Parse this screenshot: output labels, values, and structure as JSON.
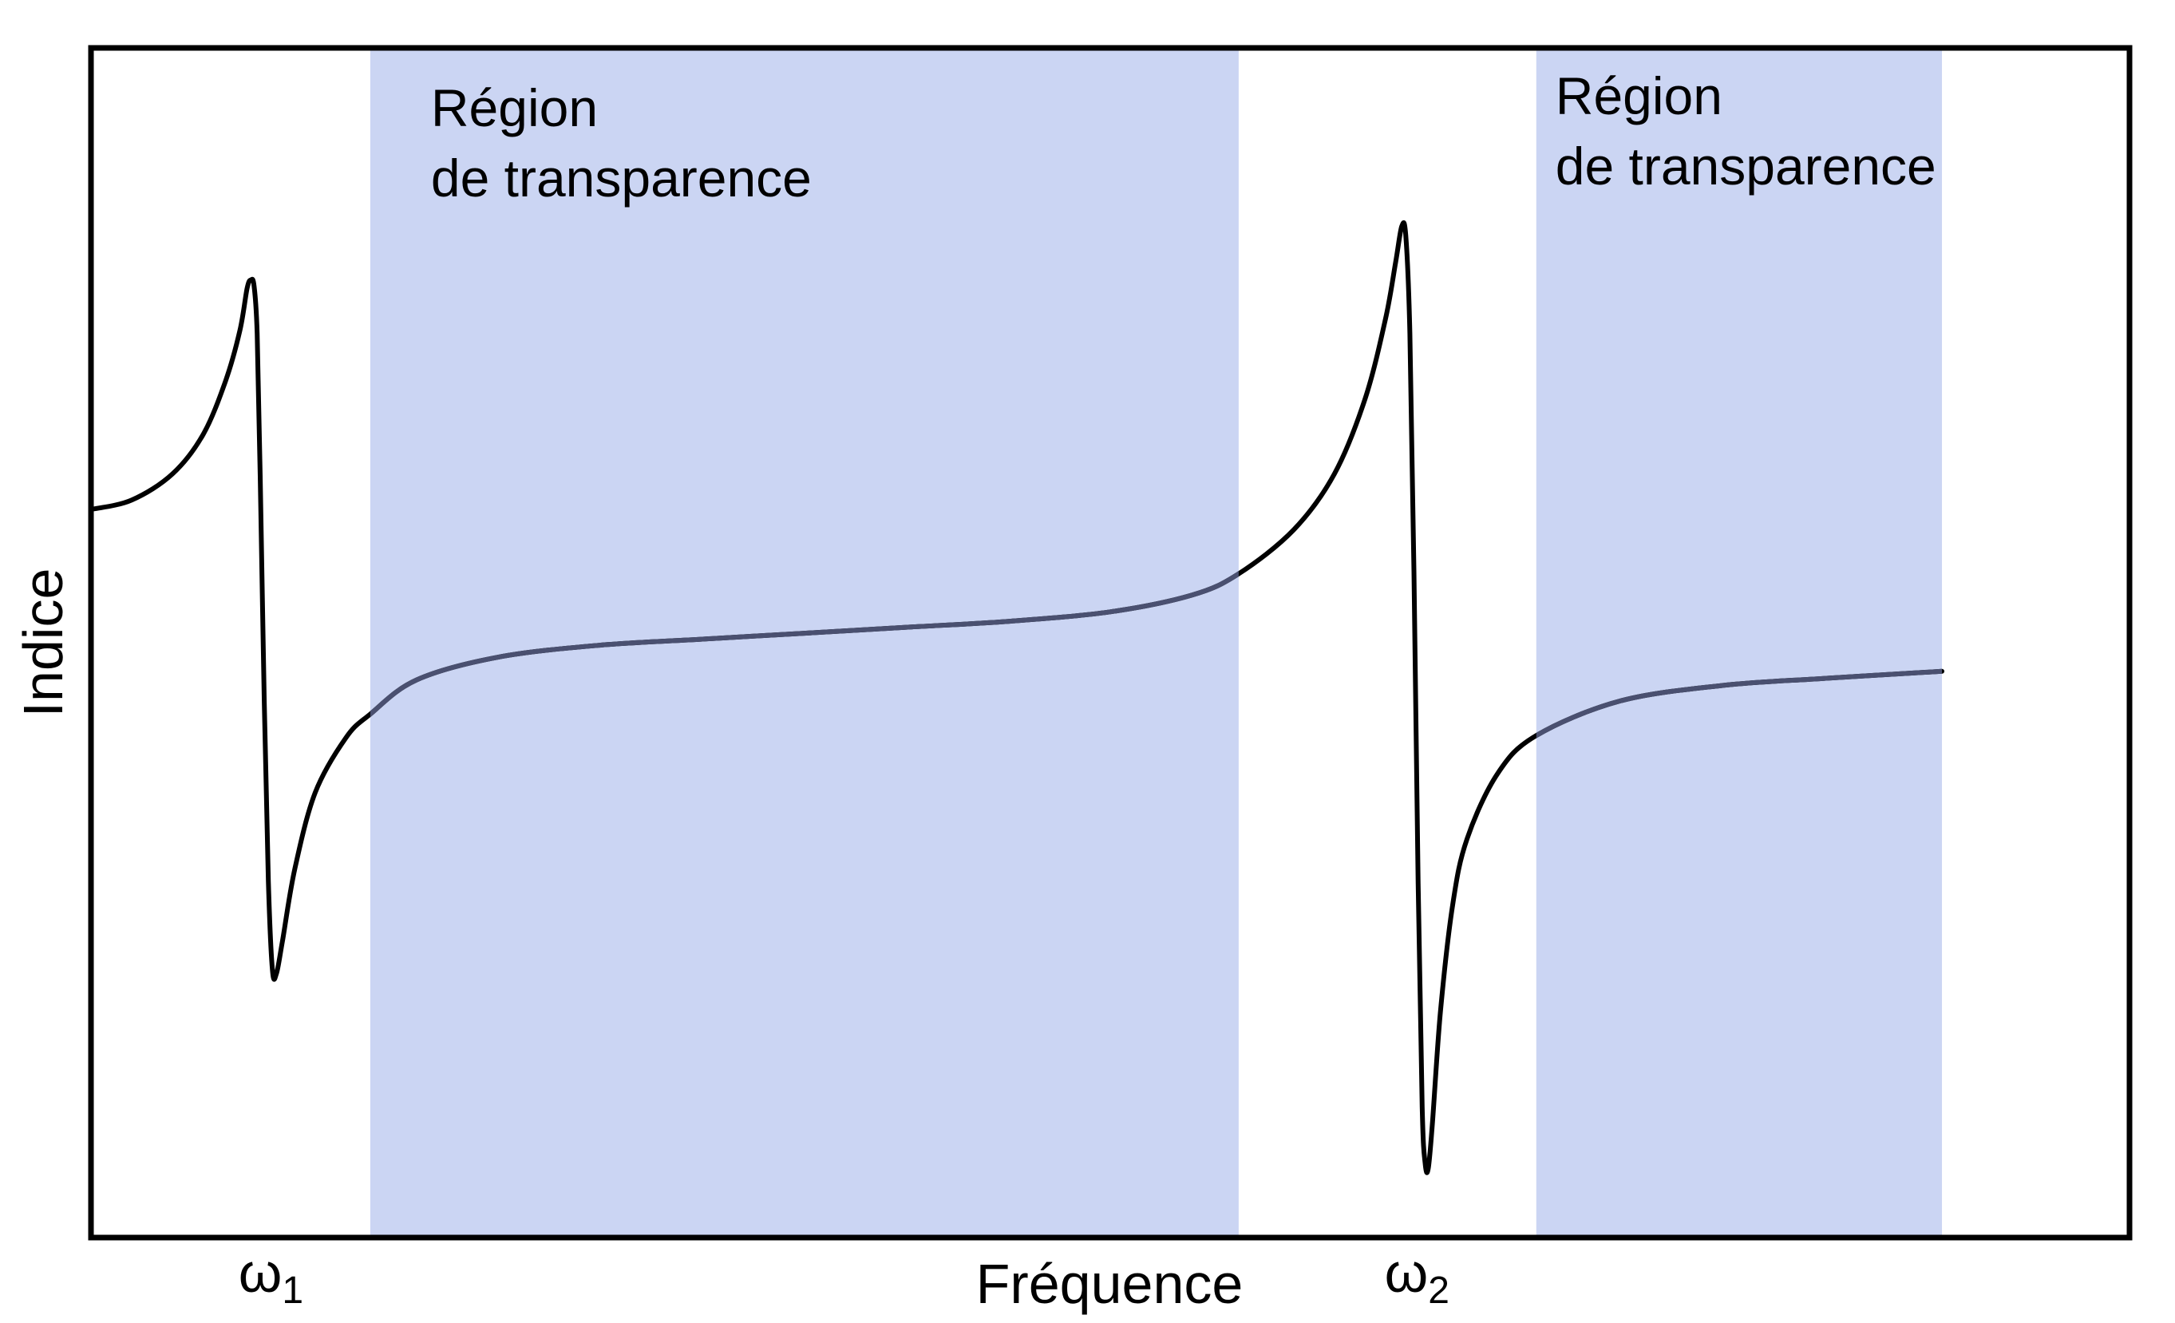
{
  "chart_data": {
    "type": "line",
    "title": "",
    "xlabel": "Fréquence",
    "ylabel": "Indice",
    "xlim": [
      0,
      1000
    ],
    "ylim": [
      0,
      1000
    ],
    "grid": false,
    "legend": "none",
    "ticks": [
      {
        "symbol": "ω",
        "sub": "1",
        "x": 82
      },
      {
        "symbol": "ω",
        "sub": "2",
        "x": 645
      }
    ],
    "regions": [
      {
        "label_line1": "Région",
        "label_line2": "de transparence",
        "x_start": 137,
        "x_end": 563
      },
      {
        "label_line1": "Région",
        "label_line2": "de transparence",
        "x_start": 709,
        "x_end": 908
      }
    ],
    "series": [
      {
        "points": [
          [
            0,
            612
          ],
          [
            20,
            620
          ],
          [
            40,
            642
          ],
          [
            55,
            675
          ],
          [
            66,
            720
          ],
          [
            73,
            762
          ],
          [
            76.6,
            798
          ],
          [
            78.5,
            805
          ],
          [
            80,
            800
          ],
          [
            81.5,
            760
          ],
          [
            83,
            640
          ],
          [
            85,
            450
          ],
          [
            87,
            300
          ],
          [
            89,
            225
          ],
          [
            91,
            222
          ],
          [
            94,
            250
          ],
          [
            100,
            310
          ],
          [
            110,
            374
          ],
          [
            125,
            420
          ],
          [
            137,
            440
          ],
          [
            160,
            469
          ],
          [
            200,
            488
          ],
          [
            250,
            498
          ],
          [
            300,
            503
          ],
          [
            350,
            508
          ],
          [
            400,
            513
          ],
          [
            450,
            518
          ],
          [
            500,
            526
          ],
          [
            540,
            540
          ],
          [
            563,
            558
          ],
          [
            590,
            595
          ],
          [
            610,
            642
          ],
          [
            625,
            705
          ],
          [
            635,
            772
          ],
          [
            640,
            820
          ],
          [
            643,
            850
          ],
          [
            645,
            842
          ],
          [
            647,
            760
          ],
          [
            649,
            560
          ],
          [
            651,
            300
          ],
          [
            653,
            110
          ],
          [
            654.5,
            62
          ],
          [
            656,
            58
          ],
          [
            658,
            95
          ],
          [
            662,
            190
          ],
          [
            668,
            280
          ],
          [
            675,
            335
          ],
          [
            690,
            390
          ],
          [
            709,
            422
          ],
          [
            750,
            451
          ],
          [
            800,
            464
          ],
          [
            850,
            470
          ],
          [
            908,
            476
          ]
        ]
      }
    ],
    "colors": {
      "region_fill": "#cbd5f3",
      "curve": "#000000",
      "curve_in_region": "#4a5070",
      "frame": "#000000"
    }
  }
}
